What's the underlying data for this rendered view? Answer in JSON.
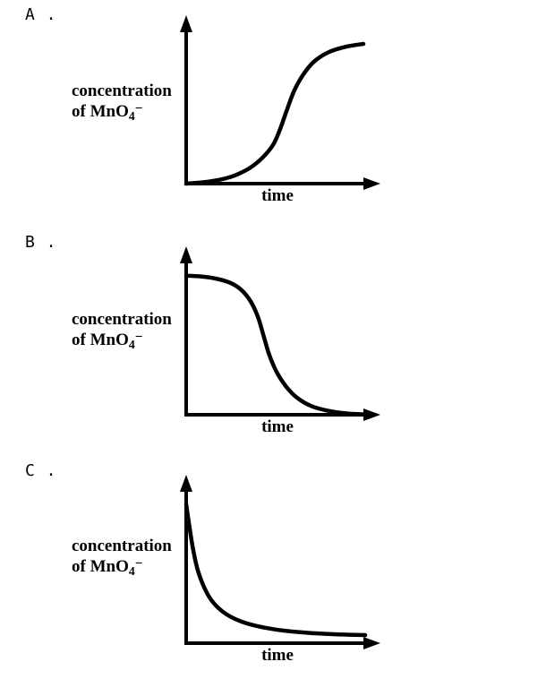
{
  "page": {
    "background": "#ffffff"
  },
  "colors": {
    "curve": "#000000",
    "axis": "#000000",
    "text": "#000000"
  },
  "ylabel": {
    "line1": "concentration",
    "line2_main": "of MnO",
    "line2_sub": "4",
    "line2_sup": "−"
  },
  "xlabel": "time",
  "chart_data": [
    {
      "id": "A",
      "option_label": "A .",
      "type": "line",
      "title": "",
      "xlabel": "time",
      "ylabel": "concentration of MnO4−",
      "x_axis": "unlabeled arrow axis (time, arbitrary units)",
      "y_axis": "unlabeled arrow axis (concentration, arbitrary units)",
      "shape": "sigmoidal increase: starts at zero, slow rise, steep middle section, plateaus near maximum",
      "points": [
        [
          0,
          0
        ],
        [
          0.1,
          0.01
        ],
        [
          0.2,
          0.03
        ],
        [
          0.28,
          0.06
        ],
        [
          0.36,
          0.11
        ],
        [
          0.43,
          0.18
        ],
        [
          0.49,
          0.27
        ],
        [
          0.53,
          0.38
        ],
        [
          0.57,
          0.52
        ],
        [
          0.61,
          0.65
        ],
        [
          0.66,
          0.76
        ],
        [
          0.72,
          0.85
        ],
        [
          0.8,
          0.915
        ],
        [
          0.9,
          0.955
        ],
        [
          1,
          0.975
        ]
      ]
    },
    {
      "id": "B",
      "option_label": "B .",
      "type": "line",
      "title": "",
      "xlabel": "time",
      "ylabel": "concentration of MnO4−",
      "x_axis": "unlabeled arrow axis (time, arbitrary units)",
      "y_axis": "unlabeled arrow axis (concentration, arbitrary units)",
      "shape": "sigmoidal decrease: starts near maximum, flat, steep drop in middle, levels off at zero",
      "points": [
        [
          0,
          0.97
        ],
        [
          0.08,
          0.965
        ],
        [
          0.16,
          0.95
        ],
        [
          0.24,
          0.92
        ],
        [
          0.3,
          0.87
        ],
        [
          0.35,
          0.79
        ],
        [
          0.39,
          0.68
        ],
        [
          0.42,
          0.55
        ],
        [
          0.45,
          0.42
        ],
        [
          0.49,
          0.3
        ],
        [
          0.54,
          0.2
        ],
        [
          0.6,
          0.12
        ],
        [
          0.68,
          0.06
        ],
        [
          0.78,
          0.025
        ],
        [
          0.88,
          0.008
        ],
        [
          1,
          0.002
        ]
      ]
    },
    {
      "id": "C",
      "option_label": "C .",
      "type": "line",
      "title": "",
      "xlabel": "time",
      "ylabel": "concentration of MnO4−",
      "x_axis": "unlabeled arrow axis (time, arbitrary units)",
      "y_axis": "unlabeled arrow axis (concentration, arbitrary units)",
      "shape": "exponential-style decay: starts near maximum on y-axis, steep initial drop, long shallow tail above x-axis",
      "points": [
        [
          0,
          0.97
        ],
        [
          0.015,
          0.84
        ],
        [
          0.035,
          0.68
        ],
        [
          0.06,
          0.53
        ],
        [
          0.09,
          0.42
        ],
        [
          0.13,
          0.32
        ],
        [
          0.18,
          0.245
        ],
        [
          0.24,
          0.19
        ],
        [
          0.31,
          0.15
        ],
        [
          0.4,
          0.118
        ],
        [
          0.5,
          0.095
        ],
        [
          0.62,
          0.078
        ],
        [
          0.76,
          0.066
        ],
        [
          0.88,
          0.06
        ],
        [
          1,
          0.056
        ]
      ]
    }
  ]
}
